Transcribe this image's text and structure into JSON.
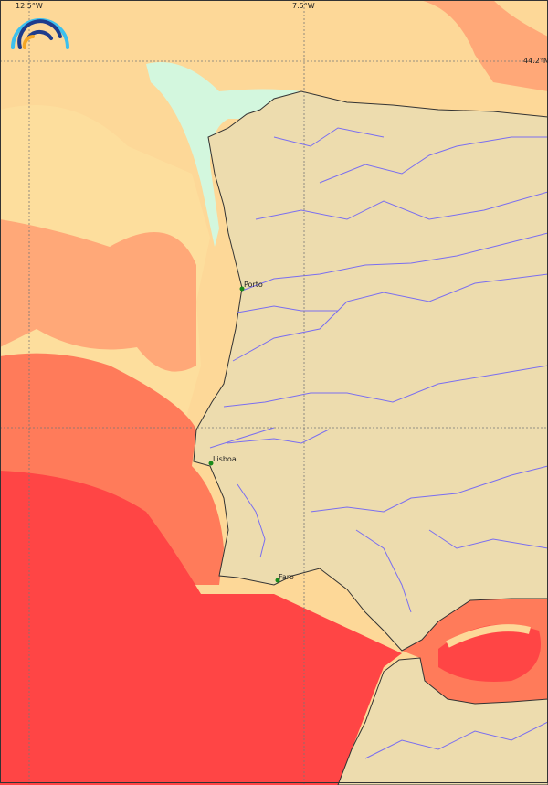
{
  "map": {
    "grid_labels": {
      "lon_left": "12.5°W",
      "lon_mid": "7.5°W",
      "lat_top": "44.2°N"
    },
    "cities": [
      {
        "name": "Porto"
      },
      {
        "name": "Lisboa"
      },
      {
        "name": "Faro"
      }
    ],
    "colors": {
      "land": "#eddcae",
      "sea_cool": "#fde2a0",
      "sea_warm_light": "#fdd898",
      "sea_warm": "#ffa878",
      "sea_hot": "#ff7b5a",
      "sea_hottest": "#ff4545",
      "coastal_cold": "#c8fff0",
      "rivers": "#7a6ef0",
      "city_marker": "#1a8a1a"
    },
    "logo": "rainbow-arcs-logo"
  }
}
